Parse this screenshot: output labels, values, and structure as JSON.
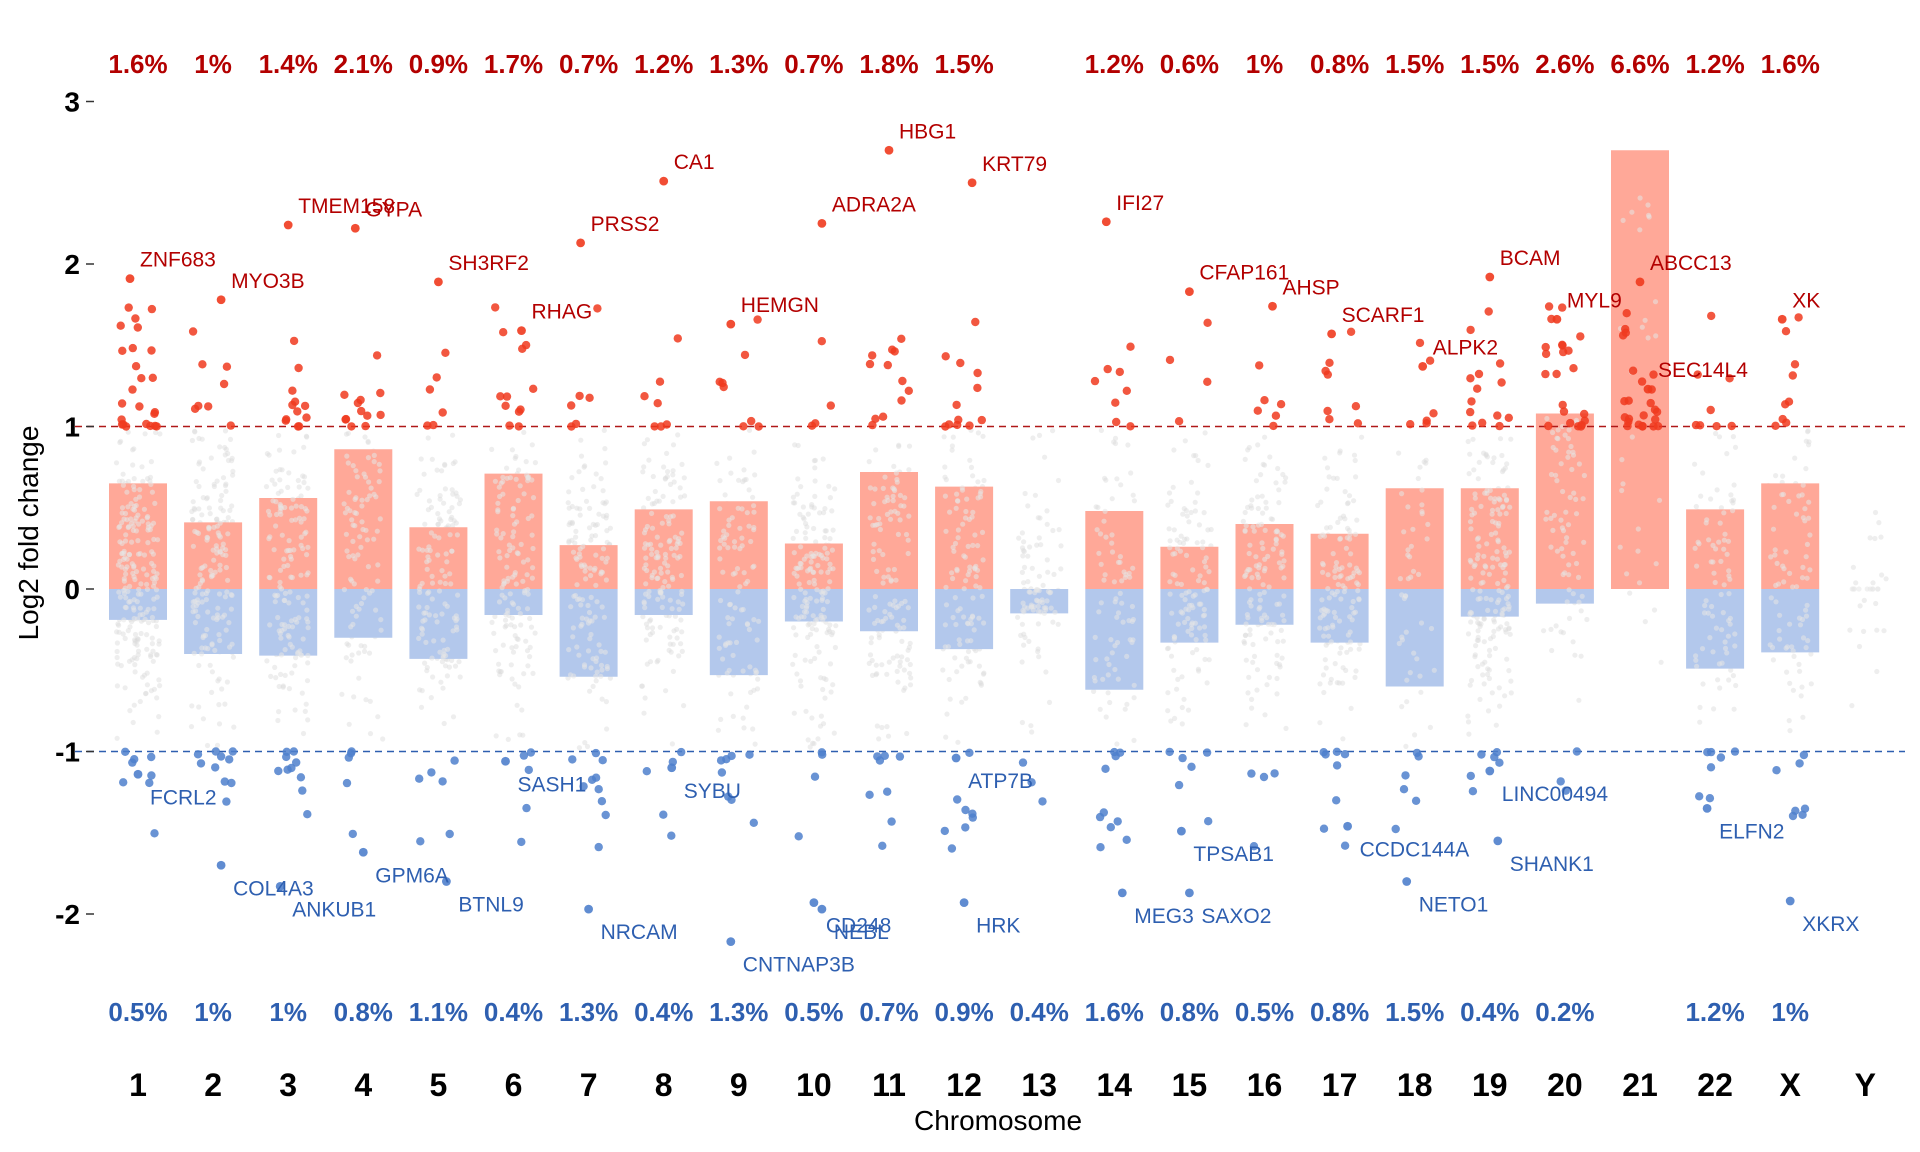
{
  "chart_data": {
    "type": "bar",
    "xlabel": "Chromosome",
    "ylabel": "Log2 fold change",
    "ylim": [
      -2.5,
      3.2
    ],
    "yticks": [
      "-2",
      "-1",
      "0",
      "1",
      "2",
      "3"
    ],
    "thresholds": [
      1,
      -1
    ],
    "categories": [
      "1",
      "2",
      "3",
      "4",
      "5",
      "6",
      "7",
      "8",
      "9",
      "10",
      "11",
      "12",
      "13",
      "14",
      "15",
      "16",
      "17",
      "18",
      "19",
      "20",
      "21",
      "22",
      "X",
      "Y"
    ],
    "series": [
      {
        "values": [
          0.65,
          0.41,
          0.56,
          0.86,
          0.38,
          0.71,
          0.27,
          0.49,
          0.54,
          0.28,
          0.72,
          0.63,
          0,
          0.48,
          0.26,
          0.4,
          0.34,
          0.62,
          0.62,
          1.08,
          2.7,
          0.49,
          0.65,
          0
        ]
      },
      {
        "values": [
          -0.19,
          -0.4,
          -0.41,
          -0.3,
          -0.43,
          -0.16,
          -0.54,
          -0.16,
          -0.53,
          -0.2,
          -0.26,
          -0.37,
          -0.15,
          -0.62,
          -0.33,
          -0.22,
          -0.33,
          -0.6,
          -0.17,
          -0.09,
          0,
          -0.49,
          -0.39,
          0
        ]
      }
    ],
    "up_percent": [
      "1.6%",
      "1%",
      "1.4%",
      "2.1%",
      "0.9%",
      "1.7%",
      "0.7%",
      "1.2%",
      "1.3%",
      "0.7%",
      "1.8%",
      "1.5%",
      "",
      "1.2%",
      "0.6%",
      "1%",
      "0.8%",
      "1.5%",
      "1.5%",
      "2.6%",
      "6.6%",
      "1.2%",
      "1.6%",
      ""
    ],
    "down_percent": [
      "0.5%",
      "1%",
      "1%",
      "0.8%",
      "1.1%",
      "0.4%",
      "1.3%",
      "0.4%",
      "1.3%",
      "0.5%",
      "0.7%",
      "0.9%",
      "0.4%",
      "1.6%",
      "0.8%",
      "0.5%",
      "0.8%",
      "1.5%",
      "0.4%",
      "0.2%",
      "",
      "1.2%",
      "1%",
      ""
    ],
    "labeled_genes": [
      {
        "name": "ZNF683",
        "chr": "1",
        "log2fc": 1.91
      },
      {
        "name": "TMEM158",
        "chr": "3",
        "log2fc": 2.24
      },
      {
        "name": "MYO3B",
        "chr": "2",
        "log2fc": 1.78
      },
      {
        "name": "GYPA",
        "chr": "4",
        "log2fc": 2.22
      },
      {
        "name": "SH3RF2",
        "chr": "5",
        "log2fc": 1.89
      },
      {
        "name": "RHAG",
        "chr": "6",
        "log2fc": 1.59
      },
      {
        "name": "PRSS2",
        "chr": "7",
        "log2fc": 2.13
      },
      {
        "name": "CA1",
        "chr": "8",
        "log2fc": 2.51
      },
      {
        "name": "ADRA2A",
        "chr": "10",
        "log2fc": 2.25
      },
      {
        "name": "HEMGN",
        "chr": "9",
        "log2fc": 1.63
      },
      {
        "name": "HBG1",
        "chr": "11",
        "log2fc": 2.7
      },
      {
        "name": "KRT79",
        "chr": "12",
        "log2fc": 2.5
      },
      {
        "name": "IFI27",
        "chr": "14",
        "log2fc": 2.26
      },
      {
        "name": "CFAP161",
        "chr": "15",
        "log2fc": 1.83
      },
      {
        "name": "AHSP",
        "chr": "16",
        "log2fc": 1.74
      },
      {
        "name": "SCARF1",
        "chr": "17",
        "log2fc": 1.57
      },
      {
        "name": "BCAM",
        "chr": "19",
        "log2fc": 1.92
      },
      {
        "name": "ALPK2",
        "chr": "18",
        "log2fc": 1.37
      },
      {
        "name": "MYL9",
        "chr": "20",
        "log2fc": 1.66
      },
      {
        "name": "ABCC13",
        "chr": "21",
        "log2fc": 1.89
      },
      {
        "name": "SEC14L4",
        "chr": "21",
        "log2fc": 1.23
      },
      {
        "name": "XK",
        "chr": "X",
        "log2fc": 1.66
      },
      {
        "name": "FCRL2",
        "chr": "1",
        "log2fc": -1.14
      },
      {
        "name": "COL4A3",
        "chr": "2",
        "log2fc": -1.7
      },
      {
        "name": "ANKUB1",
        "chr": "3",
        "log2fc": -1.83
      },
      {
        "name": "GPM6A",
        "chr": "4",
        "log2fc": -1.62
      },
      {
        "name": "BTNL9",
        "chr": "5",
        "log2fc": -1.8
      },
      {
        "name": "SASH1",
        "chr": "6",
        "log2fc": -1.06
      },
      {
        "name": "NRCAM",
        "chr": "7",
        "log2fc": -1.97
      },
      {
        "name": "SYBU",
        "chr": "8",
        "log2fc": -1.1
      },
      {
        "name": "CNTNAP3B",
        "chr": "9",
        "log2fc": -2.17
      },
      {
        "name": "CD248",
        "chr": "10",
        "log2fc": -1.93
      },
      {
        "name": "NEBL",
        "chr": "10",
        "log2fc": -1.97
      },
      {
        "name": "ATP7B",
        "chr": "12",
        "log2fc": -1.04
      },
      {
        "name": "HRK",
        "chr": "12",
        "log2fc": -1.93
      },
      {
        "name": "MEG3",
        "chr": "14",
        "log2fc": -1.87
      },
      {
        "name": "TPSAB1",
        "chr": "15",
        "log2fc": -1.49
      },
      {
        "name": "SAXO2",
        "chr": "15",
        "log2fc": -1.87
      },
      {
        "name": "CCDC144A",
        "chr": "17",
        "log2fc": -1.46
      },
      {
        "name": "NETO1",
        "chr": "18",
        "log2fc": -1.8
      },
      {
        "name": "LINC00494",
        "chr": "19",
        "log2fc": -1.12
      },
      {
        "name": "SHANK1",
        "chr": "19",
        "log2fc": -1.55
      },
      {
        "name": "ELFN2",
        "chr": "22",
        "log2fc": -1.35
      },
      {
        "name": "XKRX",
        "chr": "X",
        "log2fc": -1.92
      }
    ],
    "colors": {
      "up_bar": "#ffa898",
      "down_bar": "#b3c8ec",
      "up_point": "#f03a1e",
      "down_point": "#4f80cc",
      "up_text": "#b30000",
      "down_text": "#2e5fb0",
      "background_point": "#d9d9d9",
      "up_threshold_line": "#b01818",
      "down_threshold_line": "#2e5fb0"
    },
    "grid": false
  }
}
